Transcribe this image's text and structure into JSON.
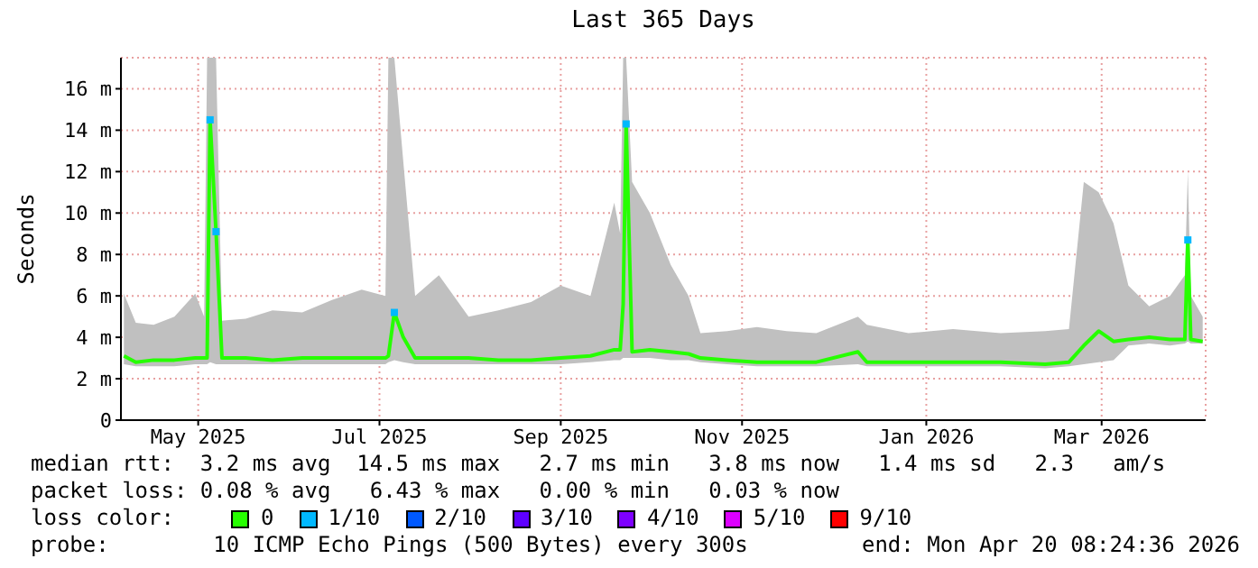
{
  "chart_data": {
    "type": "line",
    "title": "Last 365 Days",
    "ylabel": "Seconds",
    "legend_title": "loss color:",
    "legend": "bottom",
    "grid": true,
    "xlim": [
      "2025-04-20",
      "2026-04-20"
    ],
    "xticks": [
      {
        "value": "2025-05-16",
        "label": "May 2025"
      },
      {
        "value": "2025-07-16",
        "label": "Jul 2025"
      },
      {
        "value": "2025-09-15",
        "label": "Sep 2025"
      },
      {
        "value": "2025-11-15",
        "label": "Nov 2025"
      },
      {
        "value": "2026-01-16",
        "label": "Jan 2026"
      },
      {
        "value": "2026-03-16",
        "label": "Mar 2026"
      }
    ],
    "ylim": [
      0,
      17.5
    ],
    "yticks": [
      0,
      {
        "value": 2,
        "label": "2 m"
      },
      {
        "value": 4,
        "label": "4 m"
      },
      {
        "value": 6,
        "label": "6 m"
      },
      {
        "value": 8,
        "label": "8 m"
      },
      {
        "value": 10,
        "label": "10 m"
      },
      {
        "value": 12,
        "label": "12 m"
      },
      {
        "value": 14,
        "label": "14 m"
      },
      {
        "value": 16,
        "label": "16 m"
      }
    ],
    "series": [
      {
        "name": "0",
        "color": "#26ff00",
        "marker": "none",
        "x": [
          "2025-04-21",
          "2025-04-25",
          "2025-05-01",
          "2025-05-08",
          "2025-05-15",
          "2025-05-18",
          "2025-05-19",
          "2025-05-20",
          "2025-05-22",
          "2025-05-24",
          "2025-06-01",
          "2025-06-10",
          "2025-06-20",
          "2025-06-30",
          "2025-07-10",
          "2025-07-18",
          "2025-07-19",
          "2025-07-21",
          "2025-07-24",
          "2025-07-28",
          "2025-08-05",
          "2025-08-15",
          "2025-08-25",
          "2025-09-05",
          "2025-09-15",
          "2025-09-25",
          "2025-10-03",
          "2025-10-05",
          "2025-10-06",
          "2025-10-07",
          "2025-10-09",
          "2025-10-15",
          "2025-10-22",
          "2025-10-28",
          "2025-11-01",
          "2025-11-10",
          "2025-11-20",
          "2025-11-30",
          "2025-12-10",
          "2025-12-24",
          "2025-12-27",
          "2026-01-10",
          "2026-01-25",
          "2026-02-10",
          "2026-02-25",
          "2026-03-05",
          "2026-03-10",
          "2026-03-15",
          "2026-03-20",
          "2026-03-25",
          "2026-04-01",
          "2026-04-08",
          "2026-04-13",
          "2026-04-14",
          "2026-04-15",
          "2026-04-19"
        ],
        "values": [
          3.1,
          2.8,
          2.9,
          2.9,
          3.0,
          3.0,
          3.0,
          14.5,
          9.1,
          3.0,
          3.0,
          2.9,
          3.0,
          3.0,
          3.0,
          3.0,
          3.1,
          5.2,
          4.0,
          3.0,
          3.0,
          3.0,
          2.9,
          2.9,
          3.0,
          3.1,
          3.4,
          3.4,
          5.6,
          14.3,
          3.3,
          3.4,
          3.3,
          3.2,
          3.0,
          2.9,
          2.8,
          2.8,
          2.8,
          3.3,
          2.8,
          2.8,
          2.8,
          2.8,
          2.7,
          2.8,
          3.6,
          4.3,
          3.8,
          3.9,
          4.0,
          3.9,
          3.9,
          8.7,
          3.9,
          3.8
        ],
        "lower": [
          2.7,
          2.6,
          2.6,
          2.6,
          2.7,
          2.7,
          2.7,
          2.8,
          2.7,
          2.7,
          2.7,
          2.7,
          2.7,
          2.7,
          2.7,
          2.7,
          2.8,
          2.9,
          2.8,
          2.7,
          2.7,
          2.7,
          2.7,
          2.7,
          2.7,
          2.8,
          2.9,
          2.9,
          3.0,
          3.0,
          3.0,
          3.0,
          2.9,
          2.9,
          2.8,
          2.7,
          2.6,
          2.6,
          2.6,
          2.7,
          2.6,
          2.6,
          2.6,
          2.6,
          2.5,
          2.6,
          2.7,
          2.8,
          2.9,
          3.6,
          3.7,
          3.6,
          3.7,
          3.8,
          3.7,
          3.7
        ],
        "upper": [
          6.1,
          4.7,
          4.6,
          5.0,
          6.1,
          5.0,
          17.5,
          17.5,
          17.5,
          4.8,
          4.9,
          5.3,
          5.2,
          5.8,
          6.3,
          6.0,
          17.5,
          17.5,
          12.5,
          6.0,
          7.0,
          5.0,
          5.3,
          5.7,
          6.5,
          6.0,
          10.5,
          9.0,
          17.5,
          17.5,
          11.5,
          10.0,
          7.5,
          6.0,
          4.2,
          4.3,
          4.5,
          4.3,
          4.2,
          5.0,
          4.6,
          4.2,
          4.4,
          4.2,
          4.3,
          4.4,
          11.5,
          11.0,
          9.5,
          6.5,
          5.5,
          6.0,
          7.0,
          12.0,
          6.0,
          5.0
        ]
      },
      {
        "name": "1/10",
        "type": "scatter",
        "color": "#00b8ff",
        "marker": "square",
        "x": [
          "2025-05-20",
          "2025-05-22",
          "2025-07-21",
          "2025-10-07",
          "2026-04-14"
        ],
        "values": [
          14.5,
          9.1,
          5.2,
          14.3,
          8.7
        ]
      },
      {
        "name": "2/10",
        "type": "scatter",
        "color": "#0059ff",
        "marker": "square"
      },
      {
        "name": "3/10",
        "type": "scatter",
        "color": "#5e00ff",
        "marker": "square"
      },
      {
        "name": "4/10",
        "type": "scatter",
        "color": "#7e00ff",
        "marker": "square"
      },
      {
        "name": "5/10",
        "type": "scatter",
        "color": "#dd00ff",
        "marker": "square"
      },
      {
        "name": "9/10",
        "type": "scatter",
        "color": "#ff0000",
        "marker": "square"
      }
    ],
    "annotations": [
      "median rtt:  3.2 ms avg  14.5 ms max   2.7 ms min   3.8 ms now   1.4 ms sd   2.3   am/s",
      "packet loss: 0.08 % avg   6.43 % max   0.00 % min   0.03 % now",
      "probe:        10 ICMP Echo Pings (500 Bytes) every 300s",
      "end: Mon Apr 20 08:24:36 2026"
    ]
  }
}
